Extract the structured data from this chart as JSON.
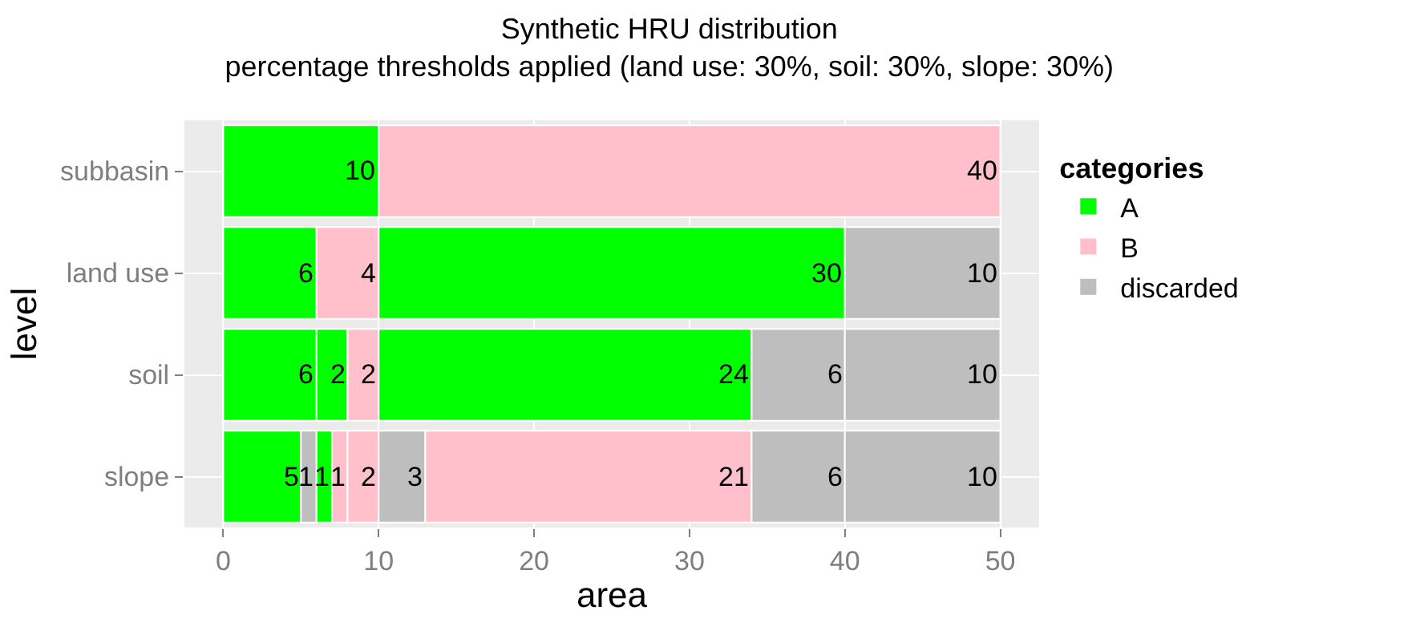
{
  "chart_data": {
    "type": "bar",
    "orientation": "horizontal",
    "stacked": true,
    "title": "Synthetic HRU distribution",
    "subtitle": "percentage thresholds applied (land use: 30%, soil: 30%, slope: 30%)",
    "xlabel": "area",
    "ylabel": "level",
    "legend_title": "categories",
    "legend": "right",
    "categories": [
      "subbasin",
      "land use",
      "soil",
      "slope"
    ],
    "series": [
      {
        "values": [
          10,
          6,
          6,
          5
        ],
        "colors": [
          "#00ff00",
          "#00ff00",
          "#00ff00",
          "#00ff00"
        ]
      },
      {
        "values": [
          40,
          4,
          2,
          1
        ],
        "colors": [
          "#ffc0cb",
          "#ffc0cb",
          "#00ff00",
          "#bebebe"
        ]
      },
      {
        "values": [
          null,
          30,
          2,
          1
        ],
        "colors": [
          null,
          "#00ff00",
          "#ffc0cb",
          "#00ff00"
        ]
      },
      {
        "values": [
          null,
          10,
          24,
          1
        ],
        "colors": [
          null,
          "#bebebe",
          "#00ff00",
          "#ffc0cb"
        ]
      },
      {
        "values": [
          null,
          null,
          6,
          2
        ],
        "colors": [
          null,
          null,
          "#bebebe",
          "#ffc0cb"
        ]
      },
      {
        "values": [
          null,
          null,
          10,
          3
        ],
        "colors": [
          null,
          null,
          "#bebebe",
          "#bebebe"
        ]
      },
      {
        "values": [
          null,
          null,
          null,
          21
        ],
        "colors": [
          null,
          null,
          null,
          "#ffc0cb"
        ]
      },
      {
        "values": [
          null,
          null,
          null,
          6
        ],
        "colors": [
          null,
          null,
          null,
          "#bebebe"
        ]
      },
      {
        "values": [
          null,
          null,
          null,
          10
        ],
        "colors": [
          null,
          null,
          null,
          "#bebebe"
        ]
      },
      {
        "name": "A",
        "color": "#00ff00",
        "values": [
          null,
          null,
          null,
          null
        ]
      },
      {
        "name": "B",
        "color": "#ffc0cb",
        "values": [
          null,
          null,
          null,
          null
        ]
      },
      {
        "name": "discarded",
        "color": "#bebebe",
        "values": [
          null,
          null,
          null,
          null
        ]
      }
    ],
    "data_labels": true,
    "grid": true,
    "xlim": [
      -2.5,
      52.5
    ],
    "xticks": [
      0,
      10,
      20,
      30,
      40,
      50
    ]
  }
}
